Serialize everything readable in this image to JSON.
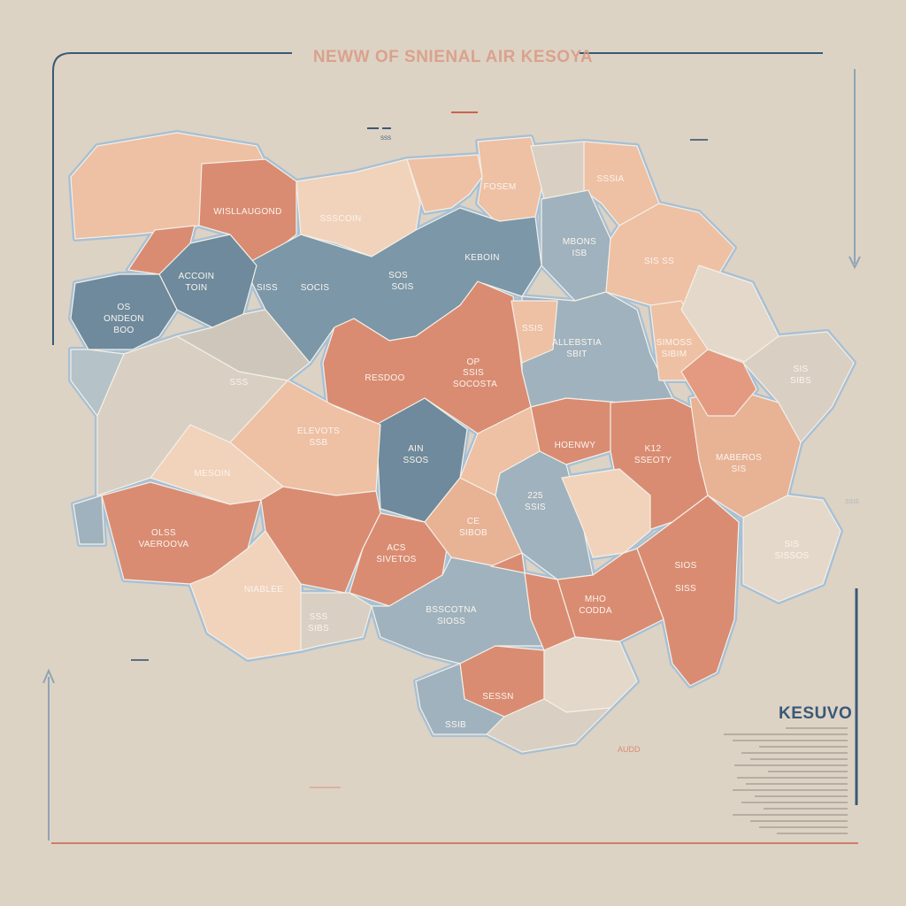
{
  "title": "NEWW OF SNIENAL AIR KESOYA",
  "legend": {
    "title": "KESUVO"
  },
  "colors": {
    "background": "#ddd3c4",
    "salmon": "#d98c72",
    "peach": "#eec0a4",
    "light_peach": "#f1d2bb",
    "slate": "#6e8a9c",
    "light_slate": "#9fb2bd",
    "beige": "#d9cfc2",
    "frame_blue": "#3a5878",
    "accent_red": "#c9624e"
  },
  "regions": [
    {
      "lines": []
    },
    {
      "lines": [
        "WISLLAUGOND"
      ]
    },
    {
      "lines": [
        "SSSCOIN"
      ]
    },
    {
      "lines": []
    },
    {
      "lines": [
        "FOSEM"
      ]
    },
    {
      "lines": []
    },
    {
      "lines": [
        "SSSIA"
      ]
    },
    {
      "lines": [
        "KEBOIN"
      ]
    },
    {
      "lines": [
        "ACCOIN",
        "TOIN"
      ]
    },
    {
      "lines": [
        "OS",
        "ONDEON",
        "BOO"
      ]
    },
    {
      "lines": []
    },
    {
      "lines": [
        "MBONS",
        "ISB"
      ]
    },
    {
      "lines": [
        "ALLEBSTIA",
        "SBIT"
      ]
    },
    {
      "lines": [
        "SIS SS"
      ]
    },
    {
      "lines": [
        "SIMOSS",
        "SIBIM"
      ]
    },
    {
      "lines": []
    },
    {
      "lines": [
        "RESDOO"
      ]
    },
    {
      "lines": [
        "SSIS"
      ]
    },
    {
      "lines": [
        "AIN",
        "SSOS"
      ]
    },
    {
      "lines": [
        "ELEVOTS",
        "SSB"
      ]
    },
    {
      "lines": [
        "MESOIN"
      ]
    },
    {
      "lines": []
    },
    {
      "lines": [
        "OLSS",
        "VAEROOVA"
      ]
    },
    {
      "lines": [
        "NIABLEE"
      ]
    },
    {
      "lines": []
    },
    {
      "lines": [
        "ACS",
        "SIVETOS"
      ]
    },
    {
      "lines": [
        "CE",
        "SIBOB"
      ]
    },
    {
      "lines": []
    },
    {
      "lines": [
        "225",
        "SSIS"
      ]
    },
    {
      "lines": [
        "HOENWY"
      ]
    },
    {
      "lines": [
        "K12",
        "SSEOTY"
      ]
    },
    {
      "lines": [
        "MABEROS",
        "SIS"
      ]
    },
    {
      "lines": [
        "SIS",
        "SIBS"
      ]
    },
    {
      "lines": []
    },
    {
      "lines": []
    },
    {
      "lines": [
        "SIS",
        "SISSOS"
      ]
    },
    {
      "lines": [
        "SIOS",
        "",
        "SISS"
      ]
    },
    {
      "lines": [
        "MHO",
        "CODDA"
      ]
    },
    {
      "lines": [
        "BSSCOTNA",
        "SIOSS"
      ]
    },
    {
      "lines": []
    },
    {
      "lines": [
        "SESSN"
      ]
    },
    {
      "lines": []
    },
    {
      "lines": [
        "SSIB"
      ]
    },
    {
      "lines": []
    },
    {
      "lines": [
        "SSS",
        "SIBS"
      ]
    },
    {
      "lines": []
    },
    {
      "lines": []
    },
    {
      "lines": [
        "SSS"
      ]
    }
  ],
  "annotations": {
    "center": [
      "OP",
      "SSIS",
      "SOCOSTA"
    ],
    "keboin_sub": [
      "SOS",
      "SOIS"
    ],
    "acc_sub": [
      "SISS",
      "SOCIS"
    ],
    "bottom_note": "AUDD",
    "right_note": "SSIS",
    "top_note": "SSS"
  }
}
